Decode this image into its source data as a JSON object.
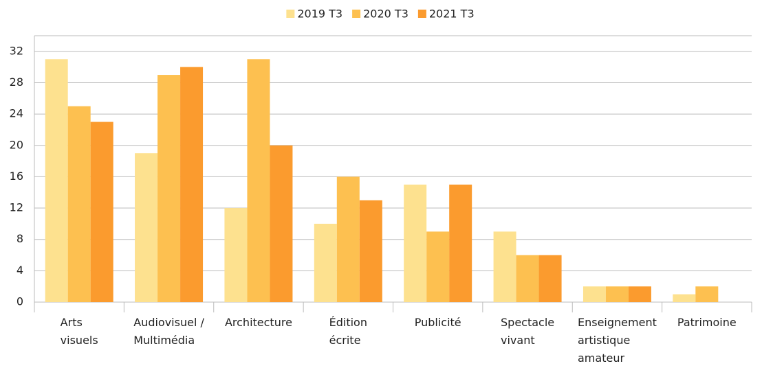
{
  "chart_data": {
    "type": "bar",
    "categories": [
      "Arts\nvisuels",
      "Audiovisuel /\nMultimédia",
      "Architecture",
      "Édition\nécrite",
      "Publicité",
      "Spectacle\nvivant",
      "Enseignement\nartistique\namateur",
      "Patrimoine"
    ],
    "series": [
      {
        "name": "2019 T3",
        "color": "#fde18f",
        "values": [
          31,
          19,
          12,
          10,
          15,
          9,
          2,
          1
        ]
      },
      {
        "name": "2020 T3",
        "color": "#fdc050",
        "values": [
          25,
          29,
          31,
          16,
          9,
          6,
          2,
          2
        ]
      },
      {
        "name": "2021 T3",
        "color": "#fb9b2e",
        "values": [
          23,
          30,
          20,
          13,
          15,
          6,
          2,
          0
        ]
      }
    ],
    "ylim": [
      0,
      34
    ],
    "yticks": [
      0,
      4,
      8,
      12,
      16,
      20,
      24,
      28,
      32
    ],
    "grid": true,
    "legend": "top"
  }
}
